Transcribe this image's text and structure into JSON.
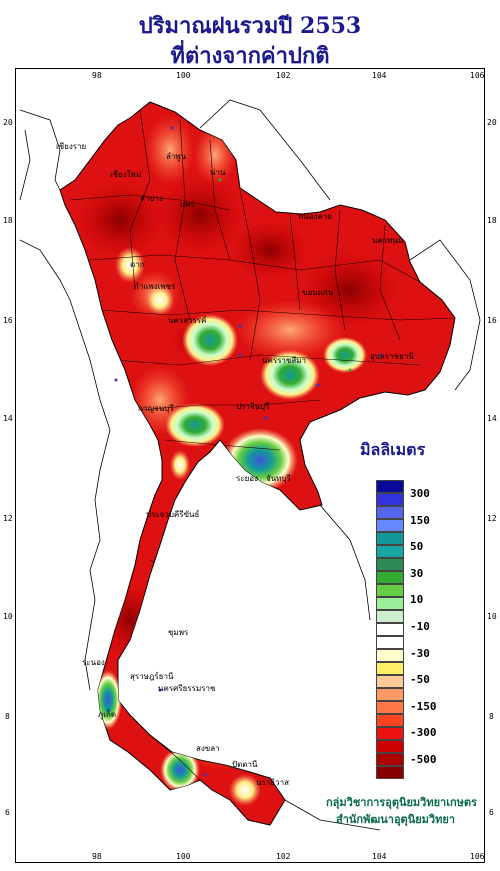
{
  "title_line1": "ปริมาณฝนรวมปี  2553",
  "title_line2": "ที่ต่างจากค่าปกติ",
  "legend_title": "มิลลิเมตร",
  "agency_line1": "กลุ่มวิชาการอุตุนิยมวิทยาเกษตร",
  "agency_line2": "สำนักพัฒนาอุตุนิยมวิทยา",
  "axes": {
    "lon_ticks": [
      "98",
      "100",
      "102",
      "104",
      "106"
    ],
    "lat_ticks": [
      "20",
      "18",
      "16",
      "14",
      "12",
      "10",
      "8",
      "6"
    ]
  },
  "legend": {
    "colors": [
      "#0a0a9a",
      "#3333dd",
      "#5566ee",
      "#6688ff",
      "#119999",
      "#1aa5a5",
      "#2e8b57",
      "#33aa33",
      "#66cc44",
      "#99ee99",
      "#cceecc",
      "#ffffff",
      "#ffffff",
      "#ffffcc",
      "#ffee66",
      "#ffcc99",
      "#ff9966",
      "#ff7744",
      "#ff4422",
      "#ee1111",
      "#cc0000",
      "#aa0000",
      "#880000"
    ],
    "labels": [
      "300",
      "150",
      "50",
      "30",
      "10",
      "-10",
      "-30",
      "-50",
      "-150",
      "-300",
      "-500"
    ]
  },
  "places": [
    {
      "name": "เชียงราย",
      "id": "chiang-rai"
    },
    {
      "name": "เชียงใหม่",
      "id": "chiang-mai"
    },
    {
      "name": "ลำพูน",
      "id": "lamphun"
    },
    {
      "name": "ลำปาง",
      "id": "lampang"
    },
    {
      "name": "น่าน",
      "id": "nan"
    },
    {
      "name": "แพร่",
      "id": "phrae"
    },
    {
      "name": "ตาก",
      "id": "tak"
    },
    {
      "name": "หนองคาย",
      "id": "nong-khai"
    },
    {
      "name": "นครพนม",
      "id": "nakhon-phanom"
    },
    {
      "name": "กำแพงเพชร",
      "id": "kamphaeng-phet"
    },
    {
      "name": "นครสวรรค์",
      "id": "nakhon-sawan"
    },
    {
      "name": "ขอนแก่น",
      "id": "khon-kaen"
    },
    {
      "name": "นครราชสีมา",
      "id": "nakhon-ratchasima"
    },
    {
      "name": "อุบลราชธานี",
      "id": "ubon"
    },
    {
      "name": "กาญจนบุรี",
      "id": "kanchanaburi"
    },
    {
      "name": "ปราจีนบุรี",
      "id": "prachinburi"
    },
    {
      "name": "ระยอง",
      "id": "rayong"
    },
    {
      "name": "จันทบุรี",
      "id": "chanthaburi"
    },
    {
      "name": "ประจวบคีรีขันธ์",
      "id": "prachuap"
    },
    {
      "name": "ชุมพร",
      "id": "chumphon"
    },
    {
      "name": "ระนอง",
      "id": "ranong"
    },
    {
      "name": "สุราษฎร์ธานี",
      "id": "surat-thani"
    },
    {
      "name": "นครศรีธรรมราช",
      "id": "nakhon-si-thammarat"
    },
    {
      "name": "ภูเก็ต",
      "id": "phuket"
    },
    {
      "name": "สงขลา",
      "id": "songkhla"
    },
    {
      "name": "ปัตตานี",
      "id": "pattani"
    },
    {
      "name": "นราธิวาส",
      "id": "narathiwat"
    }
  ]
}
